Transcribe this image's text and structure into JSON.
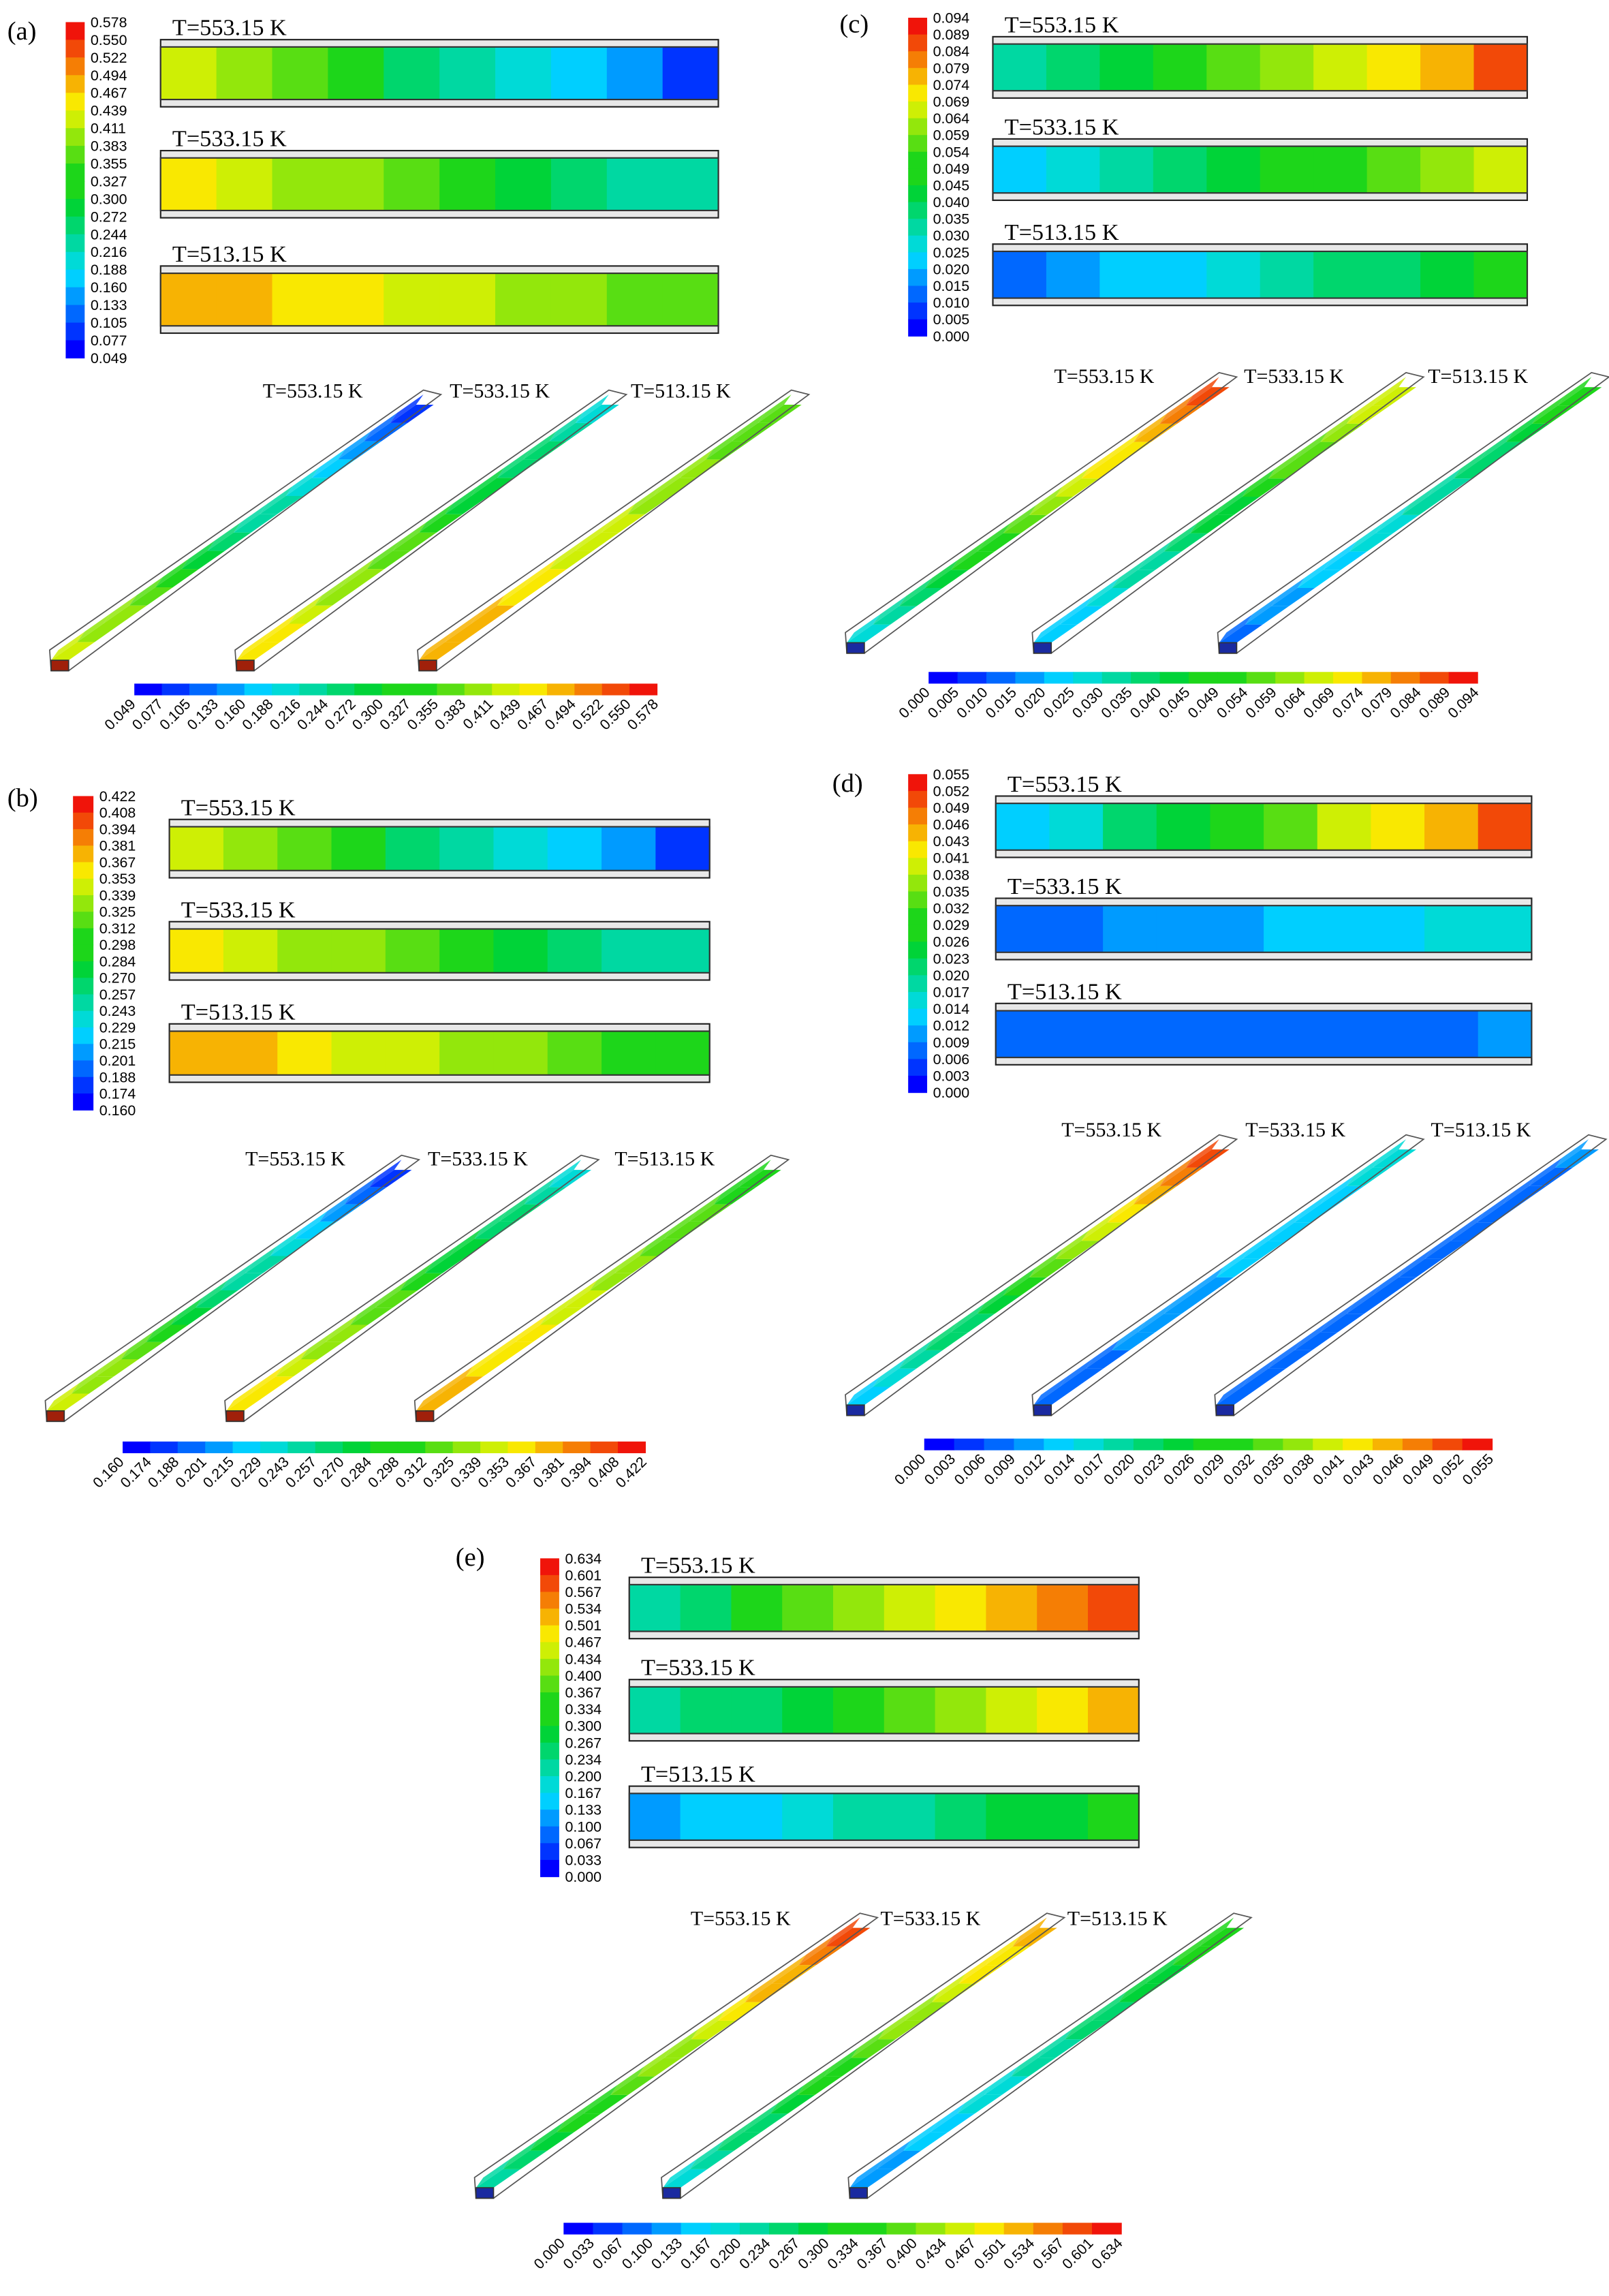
{
  "panels": [
    {
      "label": "(a)",
      "temperatures": [
        "T=553.15 K",
        "T=533.15 K",
        "T=513.15 K"
      ],
      "ticks": [
        "0.578",
        "0.550",
        "0.522",
        "0.494",
        "0.467",
        "0.439",
        "0.411",
        "0.383",
        "0.355",
        "0.327",
        "0.300",
        "0.272",
        "0.244",
        "0.216",
        "0.188",
        "0.160",
        "0.133",
        "0.105",
        "0.077",
        "0.049"
      ]
    },
    {
      "label": "(b)",
      "temperatures": [
        "T=553.15 K",
        "T=533.15 K",
        "T=513.15 K"
      ],
      "ticks": [
        "0.422",
        "0.408",
        "0.394",
        "0.381",
        "0.367",
        "0.353",
        "0.339",
        "0.325",
        "0.312",
        "0.298",
        "0.284",
        "0.270",
        "0.257",
        "0.243",
        "0.229",
        "0.215",
        "0.201",
        "0.188",
        "0.174",
        "0.160"
      ]
    },
    {
      "label": "(c)",
      "temperatures": [
        "T=553.15 K",
        "T=533.15 K",
        "T=513.15 K"
      ],
      "ticks": [
        "0.094",
        "0.089",
        "0.084",
        "0.079",
        "0.074",
        "0.069",
        "0.064",
        "0.059",
        "0.054",
        "0.049",
        "0.045",
        "0.040",
        "0.035",
        "0.030",
        "0.025",
        "0.020",
        "0.015",
        "0.010",
        "0.005",
        "0.000"
      ]
    },
    {
      "label": "(d)",
      "temperatures": [
        "T=553.15 K",
        "T=533.15 K",
        "T=513.15 K"
      ],
      "ticks": [
        "0.055",
        "0.052",
        "0.049",
        "0.046",
        "0.043",
        "0.041",
        "0.038",
        "0.035",
        "0.032",
        "0.029",
        "0.026",
        "0.023",
        "0.020",
        "0.017",
        "0.014",
        "0.012",
        "0.009",
        "0.006",
        "0.003",
        "0.000"
      ]
    },
    {
      "label": "(e)",
      "temperatures": [
        "T=553.15 K",
        "T=533.15 K",
        "T=513.15 K"
      ],
      "ticks": [
        "0.634",
        "0.601",
        "0.567",
        "0.534",
        "0.501",
        "0.467",
        "0.434",
        "0.400",
        "0.367",
        "0.334",
        "0.300",
        "0.267",
        "0.234",
        "0.200",
        "0.167",
        "0.133",
        "0.100",
        "0.067",
        "0.033",
        "0.000"
      ]
    }
  ]
}
